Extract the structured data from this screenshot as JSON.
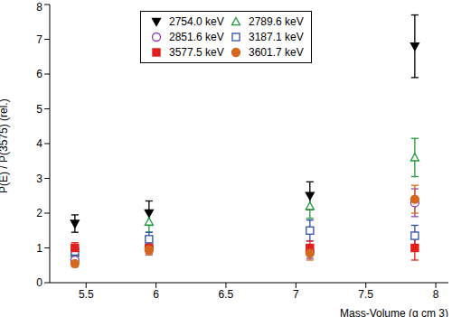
{
  "chart_data": {
    "type": "scatter",
    "x_label": "Mass-Volume (g cm 3)",
    "y_label": "P(E) / P(3575) (rel.)",
    "x": [
      5.42,
      5.95,
      7.1,
      7.85
    ],
    "xlim": [
      5.24,
      8.09
    ],
    "xticks": [
      5.5,
      6,
      6.5,
      7,
      7.5,
      8
    ],
    "ylim": [
      0,
      8
    ],
    "yticks": [
      0,
      1,
      2,
      3,
      4,
      5,
      6,
      7,
      8
    ],
    "legend": "top",
    "series": [
      {
        "name": "2754.0 keV",
        "color": "#000000",
        "marker": "triangle-down",
        "values": [
          1.7,
          2.0,
          2.5,
          6.8
        ],
        "errors": [
          0.25,
          0.35,
          0.4,
          0.9
        ]
      },
      {
        "name": "2789.6 keV",
        "color": "#1f9a3a",
        "marker": "triangle-open",
        "values": [
          0.85,
          1.75,
          2.2,
          3.6
        ],
        "errors": [
          0.15,
          0.3,
          0.35,
          0.55
        ]
      },
      {
        "name": "2851.6 keV",
        "color": "#8e3fae",
        "marker": "circle-open",
        "values": [
          0.65,
          1.0,
          0.9,
          2.3
        ],
        "errors": [
          0.15,
          0.2,
          0.2,
          0.4
        ]
      },
      {
        "name": "3187.1 keV",
        "color": "#2e4fa3",
        "marker": "square-open",
        "values": [
          0.9,
          1.25,
          1.5,
          1.35
        ],
        "errors": [
          0.15,
          0.2,
          0.3,
          0.3
        ]
      },
      {
        "name": "3577.5 keV",
        "color": "#e0201b",
        "marker": "square",
        "values": [
          1.0,
          1.0,
          1.0,
          1.0
        ],
        "errors": [
          0.15,
          0.15,
          0.2,
          0.35
        ]
      },
      {
        "name": "3601.7 keV",
        "color": "#d2691e",
        "marker": "circle",
        "values": [
          0.55,
          0.95,
          0.85,
          2.4
        ],
        "errors": [
          0.1,
          0.15,
          0.2,
          0.4
        ]
      }
    ]
  }
}
